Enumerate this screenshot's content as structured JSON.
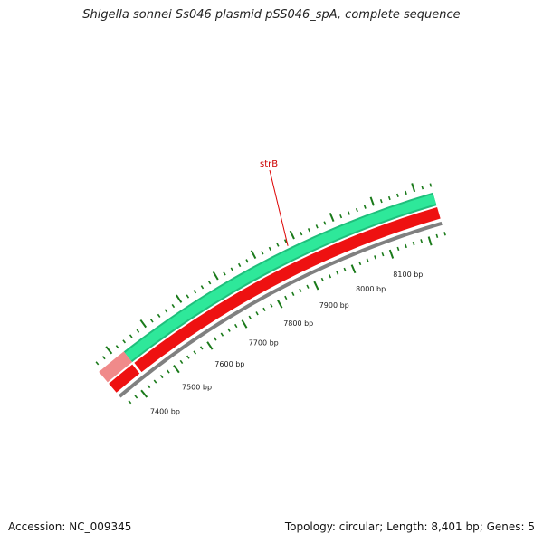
{
  "title": "Shigella sonnei Ss046 plasmid pSS046_spA, complete sequence",
  "footer": {
    "accession": "Accession: NC_009345",
    "summary": "Topology: circular; Length: 8,401 bp; Genes: 5"
  },
  "plasmid": {
    "length_bp": 8401,
    "visible_range_bp": [
      7350,
      8240
    ],
    "tick_labels": [
      "7400 bp",
      "7500 bp",
      "7600 bp",
      "7700 bp",
      "7800 bp",
      "7900 bp",
      "8000 bp",
      "8100 bp"
    ],
    "tick_label_positions_bp": [
      7400,
      7500,
      7600,
      7700,
      7800,
      7900,
      8000,
      8100
    ],
    "minor_tick_step_bp": 20,
    "major_tick_step_bp": 100
  },
  "features": [
    {
      "name": "strB",
      "strand": "forward",
      "start_bp": 7350,
      "end_bp": 8240,
      "color": "#2ee89a",
      "label_at_bp": 7880
    }
  ],
  "reverse_feature": {
    "color": "#ee1111",
    "start_bp": 7350,
    "end_bp": 8240
  },
  "backbone_color": "#808080",
  "tick_color": "#1a7a1a",
  "label_line_color": "#dd0000"
}
